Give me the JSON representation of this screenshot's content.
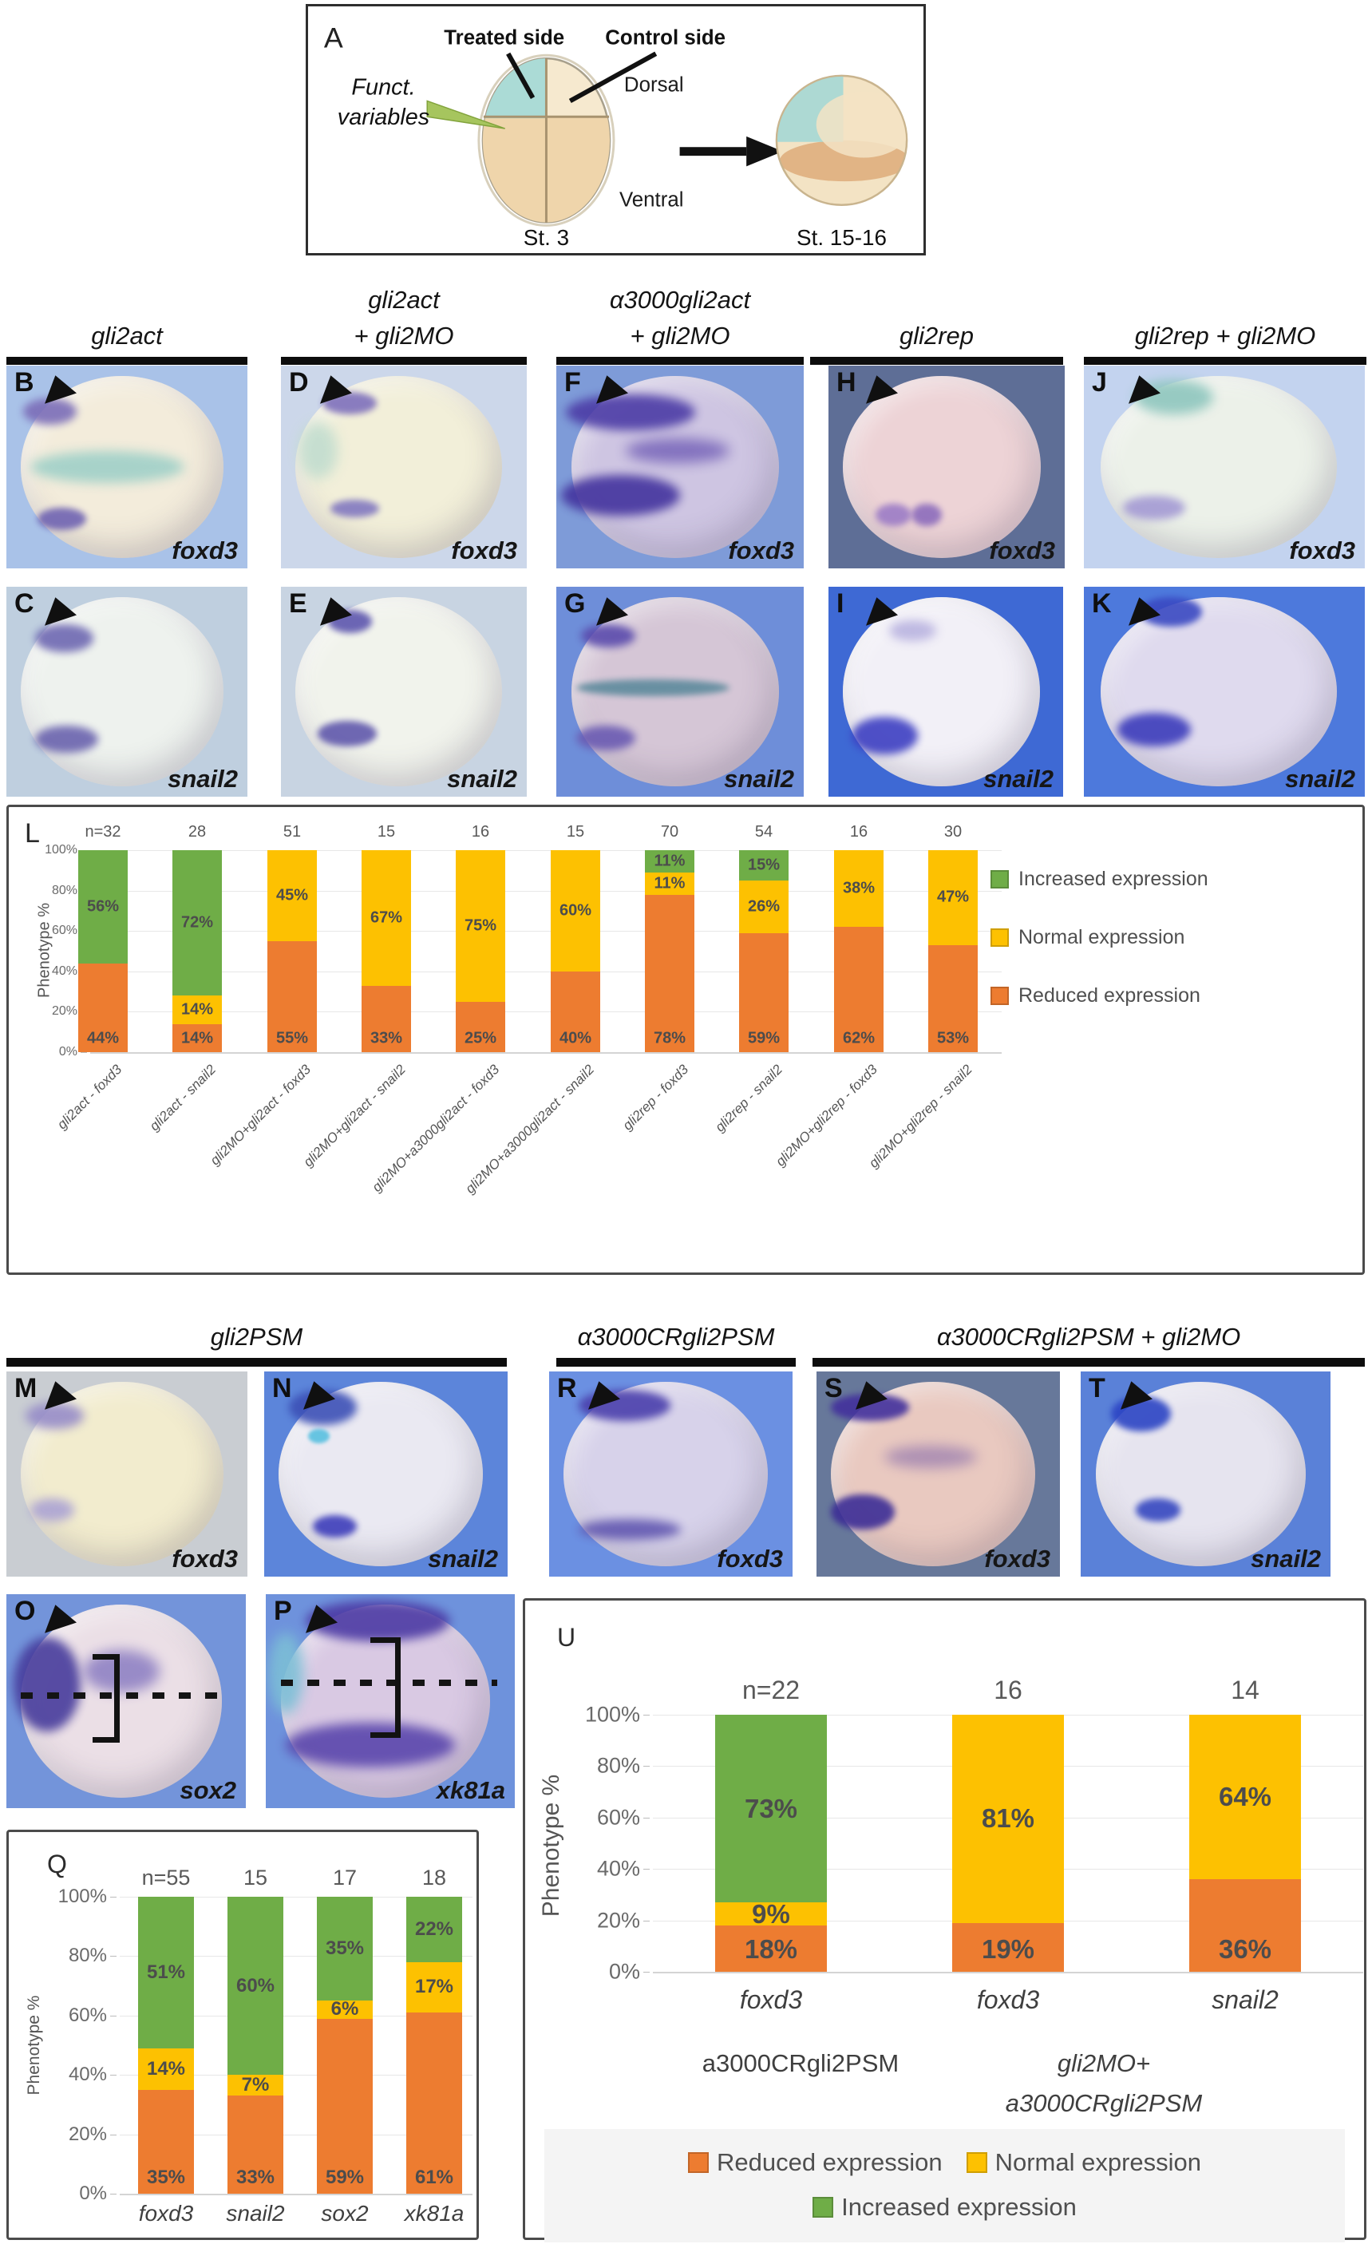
{
  "schematic": {
    "panel_letter": "A",
    "treated": "Treated side",
    "control": "Control side",
    "funct_line1": "Funct.",
    "funct_line2": "variables",
    "dorsal": "Dorsal",
    "ventral": "Ventral",
    "stage_left": "St. 3",
    "stage_right": "St. 15-16"
  },
  "headers_top": [
    {
      "l1": "gli2act",
      "l2": ""
    },
    {
      "l1": "gli2act",
      "l2": "+ gli2MO"
    },
    {
      "l1": "α3000gli2act",
      "l2": "+ gli2MO"
    },
    {
      "l1": "gli2rep",
      "l2": ""
    },
    {
      "l1": "gli2rep + gli2MO",
      "l2": ""
    }
  ],
  "headers_bottom": [
    {
      "l1": "gli2PSM"
    },
    {
      "l1": "α3000CRgli2PSM"
    },
    {
      "l1": "α3000CRgli2PSM + gli2MO"
    }
  ],
  "colors": {
    "reduced": "#ed7c30",
    "normal": "#fdc101",
    "increased": "#6fad47"
  },
  "panels": [
    {
      "letter": "B",
      "gene": "foxd3",
      "bg": "#a9c2e8",
      "body": "#f3ecdb",
      "stains": [
        [
          10,
          42,
          64,
          16,
          "#9fd0c8",
          7
        ],
        [
          7,
          16,
          22,
          13,
          "#7b6db8",
          5
        ],
        [
          13,
          70,
          20,
          11,
          "#6f63b2",
          4
        ]
      ]
    },
    {
      "letter": "D",
      "gene": "foxd3",
      "bg": "#ccd7ea",
      "body": "#f2efd9",
      "stains": [
        [
          17,
          13,
          22,
          11,
          "#7e70bc",
          4
        ],
        [
          20,
          66,
          20,
          9,
          "#8278c0",
          4
        ],
        [
          7,
          28,
          16,
          28,
          "#c2ddcf",
          8
        ]
      ]
    },
    {
      "letter": "F",
      "gene": "foxd3",
      "bg": "#7e9bd8",
      "body": "#cec5e2",
      "stains": [
        [
          4,
          14,
          52,
          18,
          "#4c3ca6",
          6
        ],
        [
          2,
          54,
          48,
          20,
          "#43339e",
          6
        ],
        [
          28,
          36,
          42,
          12,
          "#7b69bb",
          8
        ]
      ]
    },
    {
      "letter": "H",
      "gene": "foxd3",
      "bg": "#5e6e96",
      "body": "#edd3d6",
      "stains": [
        [
          20,
          68,
          15,
          11,
          "#9c7cc6",
          4
        ],
        [
          35,
          68,
          13,
          11,
          "#8c6cbc",
          4
        ]
      ]
    },
    {
      "letter": "J",
      "gene": "foxd3",
      "bg": "#c3d3ef",
      "body": "#ecf1e9",
      "stains": [
        [
          18,
          7,
          28,
          17,
          "#8ec6be",
          7
        ],
        [
          14,
          64,
          22,
          12,
          "#a49ad4",
          5
        ]
      ]
    },
    {
      "letter": "C",
      "gene": "snail2",
      "bg": "#bfcfdf",
      "body": "#eef2ee",
      "stains": [
        [
          12,
          18,
          24,
          13,
          "#6e68b2",
          5
        ],
        [
          12,
          66,
          26,
          13,
          "#6a63ae",
          5
        ]
      ]
    },
    {
      "letter": "E",
      "gene": "snail2",
      "bg": "#c8d4e2",
      "body": "#f1f3ec",
      "stains": [
        [
          19,
          11,
          18,
          11,
          "#5d56ae",
          4
        ],
        [
          15,
          64,
          24,
          12,
          "#6058ac",
          4
        ]
      ]
    },
    {
      "letter": "G",
      "gene": "snail2",
      "bg": "#6e8ed9",
      "body": "#d5c6d6",
      "stains": [
        [
          10,
          18,
          22,
          11,
          "#5a4aac",
          5
        ],
        [
          8,
          44,
          62,
          8,
          "#5d8a9c",
          4
        ],
        [
          8,
          66,
          24,
          12,
          "#6a5ab2",
          5
        ]
      ]
    },
    {
      "letter": "I",
      "gene": "snail2",
      "bg": "#3e69d4",
      "body": "#f2f0f7",
      "stains": [
        [
          10,
          62,
          28,
          18,
          "#3d3fc2",
          5
        ],
        [
          26,
          16,
          20,
          10,
          "#b9b3e0",
          6
        ]
      ]
    },
    {
      "letter": "K",
      "gene": "snail2",
      "bg": "#4d79dc",
      "body": "#dfdaee",
      "stains": [
        [
          20,
          5,
          22,
          14,
          "#3a49c2",
          4
        ],
        [
          12,
          60,
          26,
          16,
          "#3c3cbb",
          5
        ]
      ]
    },
    {
      "letter": "M",
      "gene": "foxd3",
      "bg": "#c9cdd2",
      "body": "#f2ecce",
      "stains": [
        [
          8,
          15,
          24,
          13,
          "#968cc8",
          6
        ],
        [
          10,
          62,
          18,
          11,
          "#aba3d4",
          6
        ]
      ]
    },
    {
      "letter": "N",
      "gene": "snail2",
      "bg": "#5c85da",
      "body": "#eae9f2",
      "stains": [
        [
          10,
          9,
          28,
          17,
          "#3c50b6",
          5
        ],
        [
          18,
          28,
          9,
          7,
          "#58c0e0",
          2
        ],
        [
          20,
          70,
          18,
          11,
          "#3d3dba",
          4
        ]
      ]
    },
    {
      "letter": "R",
      "gene": "foxd3",
      "bg": "#6b90e2",
      "body": "#d7d2ea",
      "stains": [
        [
          12,
          9,
          38,
          15,
          "#4a3fac",
          5
        ],
        [
          12,
          72,
          42,
          10,
          "#6157b0",
          6
        ]
      ]
    },
    {
      "letter": "S",
      "gene": "foxd3",
      "bg": "#67789a",
      "body": "#e9c9c0",
      "stains": [
        [
          6,
          11,
          32,
          13,
          "#42309c",
          4
        ],
        [
          6,
          60,
          26,
          17,
          "#3c2d96",
          4
        ],
        [
          28,
          36,
          38,
          11,
          "#a78ab2",
          8
        ]
      ]
    },
    {
      "letter": "T",
      "gene": "snail2",
      "bg": "#5a81d8",
      "body": "#e6e4ef",
      "stains": [
        [
          12,
          12,
          24,
          17,
          "#2b44c4",
          4
        ],
        [
          22,
          62,
          18,
          11,
          "#3547c0",
          4
        ]
      ]
    },
    {
      "letter": "O",
      "gene": "sox2",
      "bg": "#7394da",
      "body": "#ebdfe6",
      "stains": [
        [
          3,
          20,
          28,
          44,
          "#473c9c",
          6
        ],
        [
          32,
          26,
          32,
          20,
          "#9082c4",
          8
        ]
      ],
      "dots_y": 46,
      "bracket": [
        36,
        28,
        9,
        36
      ]
    },
    {
      "letter": "P",
      "gene": "xk81a",
      "bg": "#6e92dc",
      "body": "#d9c9e3",
      "stains": [
        [
          16,
          3,
          58,
          19,
          "#4c3aa4",
          6
        ],
        [
          8,
          60,
          68,
          21,
          "#5a46ac",
          7
        ],
        [
          1,
          18,
          14,
          38,
          "#7cbed6",
          8
        ]
      ],
      "dots_y": 40,
      "bracket": [
        42,
        20,
        10,
        42
      ]
    }
  ],
  "chart_data": [
    {
      "type": "bar",
      "stacked": true,
      "panel_letter": "L",
      "title": "",
      "xlabel": "",
      "ylabel": "Phenotype %",
      "ylim": [
        0,
        100
      ],
      "yticks": [
        "100%",
        "80%",
        "60%",
        "40%",
        "20%",
        "0%"
      ],
      "n_labels": [
        "n=32",
        "28",
        "51",
        "15",
        "16",
        "15",
        "70",
        "54",
        "16",
        "30"
      ],
      "categories": [
        "gli2act - foxd3",
        "gli2act - snail2",
        "gli2MO+gli2act - foxd3",
        "gli2MO+gli2act - snail2",
        "gli2MO+a3000gli2act - foxd3",
        "gli2MO+a3000gli2act - snail2",
        "gli2rep - foxd3",
        "gli2rep - snail2",
        "gli2MO+gli2rep - foxd3",
        "gli2MO+gli2rep - snail2"
      ],
      "series": [
        {
          "name": "Reduced expression",
          "key": "reduced",
          "values": [
            44,
            14,
            55,
            33,
            25,
            40,
            78,
            59,
            62,
            53
          ]
        },
        {
          "name": "Normal expression",
          "key": "normal",
          "values": [
            0,
            14,
            45,
            67,
            75,
            60,
            11,
            26,
            38,
            47
          ]
        },
        {
          "name": "Increased expression",
          "key": "increased",
          "values": [
            56,
            72,
            0,
            0,
            0,
            0,
            11,
            15,
            0,
            0
          ]
        }
      ],
      "legend": [
        "Increased expression",
        "Normal expression",
        "Reduced expression"
      ],
      "legend_position": "right"
    },
    {
      "type": "bar",
      "stacked": true,
      "panel_letter": "Q",
      "title": "",
      "xlabel": "",
      "ylabel": "Phenotype %",
      "ylim": [
        0,
        100
      ],
      "yticks": [
        "100%",
        "80%",
        "60%",
        "40%",
        "20%",
        "0%"
      ],
      "n_labels": [
        "n=55",
        "15",
        "17",
        "18"
      ],
      "categories": [
        "foxd3",
        "snail2",
        "sox2",
        "xk81a"
      ],
      "series": [
        {
          "name": "Reduced expression",
          "key": "reduced",
          "values": [
            35,
            33,
            59,
            61
          ]
        },
        {
          "name": "Normal expression",
          "key": "normal",
          "values": [
            14,
            7,
            6,
            17
          ]
        },
        {
          "name": "Increased expression",
          "key": "increased",
          "values": [
            51,
            60,
            35,
            22
          ]
        }
      ]
    },
    {
      "type": "bar",
      "stacked": true,
      "panel_letter": "U",
      "title": "",
      "xlabel": "",
      "ylabel": "Phenotype %",
      "ylim": [
        0,
        100
      ],
      "yticks": [
        "100%",
        "80%",
        "60%",
        "40%",
        "20%",
        "0%"
      ],
      "n_labels": [
        "n=22",
        "16",
        "14"
      ],
      "categories": [
        "foxd3",
        "foxd3",
        "snail2"
      ],
      "group_labels": [
        {
          "lines": [
            "a3000CRgli2PSM"
          ],
          "italic": false
        },
        {
          "lines": [
            "gli2MO+",
            "a3000CRgli2PSM"
          ],
          "italic": true
        }
      ],
      "series": [
        {
          "name": "Reduced expression",
          "key": "reduced",
          "values": [
            18,
            19,
            36
          ]
        },
        {
          "name": "Normal expression",
          "key": "normal",
          "values": [
            9,
            81,
            64
          ]
        },
        {
          "name": "Increased expression",
          "key": "increased",
          "values": [
            73,
            0,
            0
          ]
        }
      ],
      "legend_rows": [
        [
          "Reduced expression",
          "Normal expression"
        ],
        [
          "Increased expression"
        ]
      ],
      "legend_position": "bottom"
    }
  ]
}
